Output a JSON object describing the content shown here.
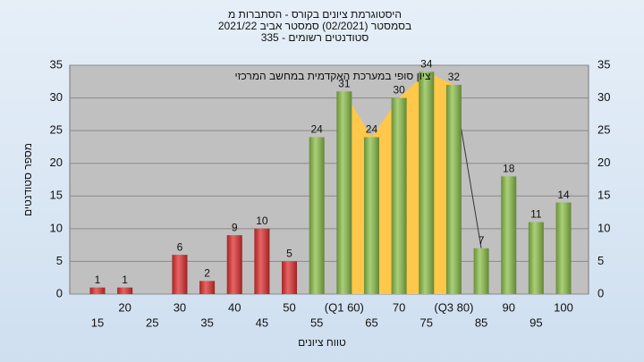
{
  "chart_data": {
    "type": "bar",
    "title": [
      "היסטוגרמת ציונים בקורס - הסתברות מ",
      "בסמסטר  (02/2021)  סמסטר אביב 2021/22",
      "סטודנטים רשומים - 335"
    ],
    "annotation": "ציון סופי במערכת האקדמית במחשב המרכזי",
    "x_label": "טווח ציונים",
    "y_label": "מספר סטודנטים",
    "categories": [
      "15",
      "20",
      "25",
      "30",
      "35",
      "40",
      "45",
      "50",
      "55",
      "(Q1 60)",
      "65",
      "70",
      "75",
      "(Q3 80)",
      "85",
      "90",
      "95",
      "100"
    ],
    "values": [
      1,
      1,
      0,
      6,
      2,
      9,
      10,
      5,
      24,
      31,
      24,
      30,
      34,
      32,
      7,
      18,
      11,
      14
    ],
    "colors": [
      "#e03030",
      "#e03030",
      "#e03030",
      "#e03030",
      "#e03030",
      "#e03030",
      "#e03030",
      "#e03030",
      "#8cc04a",
      "#8cc04a",
      "#8cc04a",
      "#8cc04a",
      "#8cc04a",
      "#8cc04a",
      "#8cc04a",
      "#8cc04a",
      "#8cc04a",
      "#8cc04a"
    ],
    "iqr_color": "#ffc84a",
    "ylim": [
      0,
      35
    ],
    "yticks": [
      0,
      5,
      10,
      15,
      20,
      25,
      30,
      35
    ],
    "grid": true
  }
}
